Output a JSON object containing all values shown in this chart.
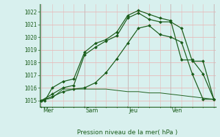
{
  "bg_color": "#d8f0ee",
  "plot_bg_color": "#d8f0ee",
  "grid_color_h": "#e8b8b8",
  "grid_color_v": "#c8b8b8",
  "line_color": "#1a5c1a",
  "title": "Pression niveau de la mer( hPa )",
  "ylim": [
    1014.5,
    1022.6
  ],
  "yticks": [
    1015,
    1016,
    1017,
    1018,
    1019,
    1020,
    1021,
    1022
  ],
  "xlim": [
    -0.5,
    48.5
  ],
  "vlines_major": [
    0,
    12,
    24,
    36,
    48
  ],
  "vlines_minor": [
    3,
    6,
    9,
    15,
    18,
    21,
    27,
    30,
    33,
    39,
    42,
    45
  ],
  "day_labels": [
    "Mer",
    "Sam",
    "Jeu",
    "Ven"
  ],
  "day_positions": [
    0,
    12,
    24,
    36
  ],
  "line1_x": [
    0,
    1,
    3,
    6,
    9,
    12,
    15,
    18,
    21,
    24,
    27,
    30,
    33,
    36,
    39,
    42,
    45,
    48
  ],
  "line1_y": [
    1015.0,
    1015.0,
    1016.0,
    1016.5,
    1016.7,
    1018.8,
    1019.5,
    1019.8,
    1020.4,
    1021.7,
    1022.1,
    1021.8,
    1021.5,
    1021.3,
    1018.2,
    1018.2,
    1017.1,
    1015.1
  ],
  "line2_x": [
    0,
    3,
    6,
    9,
    12,
    15,
    18,
    21,
    24,
    27,
    30,
    33,
    36,
    39,
    42,
    45,
    48
  ],
  "line2_y": [
    1015.0,
    1015.5,
    1016.0,
    1016.2,
    1018.6,
    1019.2,
    1019.7,
    1020.1,
    1021.5,
    1021.9,
    1021.4,
    1021.2,
    1021.2,
    1020.7,
    1018.1,
    1018.1,
    1015.1
  ],
  "line3_x": [
    0,
    3,
    6,
    9,
    12,
    15,
    18,
    21,
    24,
    27,
    30,
    33,
    36,
    39,
    42,
    45,
    48
  ],
  "line3_y": [
    1015.0,
    1015.3,
    1015.7,
    1015.9,
    1016.0,
    1016.4,
    1017.2,
    1018.3,
    1019.5,
    1020.7,
    1020.9,
    1020.2,
    1020.0,
    1019.6,
    1017.1,
    1015.1,
    1015.1
  ],
  "line4_x": [
    0,
    3,
    6,
    9,
    12,
    15,
    18,
    21,
    24,
    27,
    30,
    33,
    36,
    39,
    42,
    45,
    48
  ],
  "line4_y": [
    1015.0,
    1015.2,
    1015.9,
    1015.9,
    1015.9,
    1015.9,
    1015.9,
    1015.8,
    1015.7,
    1015.7,
    1015.6,
    1015.6,
    1015.5,
    1015.4,
    1015.3,
    1015.2,
    1015.1
  ]
}
